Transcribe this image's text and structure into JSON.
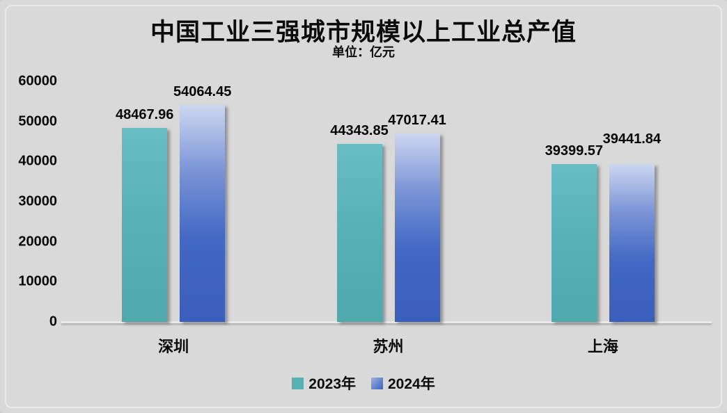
{
  "title": "中国工业三强城市规模以上工业总产值",
  "subtitle": "单位：亿元",
  "colors": {
    "background": "#d9d9d9",
    "text": "#0a0a0a",
    "series_2023": "#56b1b5",
    "series_2023_gradient_top": "#68bec2",
    "series_2023_gradient_bottom": "#50a9ad",
    "series_2024": "#3c61bf",
    "series_2024_gradient_top": "#ccd6ef",
    "series_2024_gradient_bottom": "#3a5ebc"
  },
  "chart_data": {
    "type": "bar",
    "title": "中国工业三强城市规模以上工业总产值",
    "subtitle": "单位：亿元",
    "unit": "亿元",
    "categories": [
      "深圳",
      "苏州",
      "上海"
    ],
    "series": [
      {
        "name": "2023年",
        "color": "#56b1b5",
        "values": [
          48467.96,
          44343.85,
          39399.57
        ]
      },
      {
        "name": "2024年",
        "color": "#3c61bf",
        "values": [
          54064.45,
          47017.41,
          39441.84
        ]
      }
    ],
    "ylim": [
      0,
      60000
    ],
    "yticks": [
      0,
      10000,
      20000,
      30000,
      40000,
      50000,
      60000
    ],
    "grid": false,
    "data_labels": true,
    "legend_position": "bottom"
  }
}
